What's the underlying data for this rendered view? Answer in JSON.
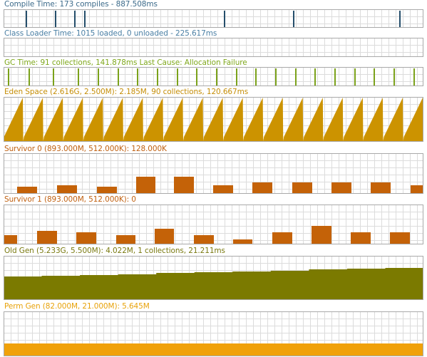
{
  "panels": [
    {
      "id": "compile-time",
      "title": "Compile Time: 173 compiles - 887.508ms",
      "title_color": "#3b6a8a",
      "type": "spikes",
      "fill": "#254e6b",
      "spike_x": [
        0.052,
        0.123,
        0.168,
        0.192,
        0.524,
        0.689,
        0.942
      ]
    },
    {
      "id": "class-loader-time",
      "title": "Class Loader Time: 1015 loaded, 0 unloaded - 225.617ms",
      "title_color": "#4a7fa4",
      "type": "empty"
    },
    {
      "id": "gc-time",
      "title": "GC Time: 91 collections, 141.878ms Last Cause: Allocation Failure",
      "title_color": "#7fa81c",
      "type": "spikes",
      "fill": "#7ba21a",
      "spike_x": [
        0.01,
        0.059,
        0.117,
        0.176,
        0.224,
        0.271,
        0.318,
        0.365,
        0.412,
        0.459,
        0.506,
        0.553,
        0.6,
        0.647,
        0.694,
        0.741,
        0.788,
        0.835,
        0.882,
        0.929,
        0.976
      ]
    },
    {
      "id": "eden-space",
      "title": "Eden Space (2.616G, 2.500M): 2.185M, 90 collections, 120.667ms",
      "title_color": "#c58e07",
      "type": "sawtooth",
      "fill": "#cc9300",
      "teeth": 21
    },
    {
      "id": "survivor-0",
      "title": "Survivor 0 (893.000M, 512.000K): 128.000K",
      "title_color": "#c06010",
      "type": "blocks",
      "fill": "#c46208",
      "blocks": [
        {
          "x": 0.033,
          "w": 0.048,
          "h": 0.16
        },
        {
          "x": 0.127,
          "w": 0.048,
          "h": 0.2
        },
        {
          "x": 0.222,
          "w": 0.048,
          "h": 0.16
        },
        {
          "x": 0.316,
          "w": 0.046,
          "h": 0.4
        },
        {
          "x": 0.405,
          "w": 0.048,
          "h": 0.4
        },
        {
          "x": 0.499,
          "w": 0.048,
          "h": 0.2
        },
        {
          "x": 0.593,
          "w": 0.048,
          "h": 0.27
        },
        {
          "x": 0.687,
          "w": 0.048,
          "h": 0.27
        },
        {
          "x": 0.781,
          "w": 0.048,
          "h": 0.27
        },
        {
          "x": 0.875,
          "w": 0.048,
          "h": 0.27
        },
        {
          "x": 0.969,
          "w": 0.031,
          "h": 0.2
        }
      ]
    },
    {
      "id": "survivor-1",
      "title": "Survivor 1 (893.000M, 512.000K): 0",
      "title_color": "#c06010",
      "type": "blocks",
      "fill": "#c46208",
      "blocks": [
        {
          "x": 0.0,
          "w": 0.032,
          "h": 0.22
        },
        {
          "x": 0.08,
          "w": 0.048,
          "h": 0.33
        },
        {
          "x": 0.173,
          "w": 0.048,
          "h": 0.28
        },
        {
          "x": 0.268,
          "w": 0.046,
          "h": 0.22
        },
        {
          "x": 0.36,
          "w": 0.046,
          "h": 0.38
        },
        {
          "x": 0.453,
          "w": 0.048,
          "h": 0.22
        },
        {
          "x": 0.547,
          "w": 0.046,
          "h": 0.11
        },
        {
          "x": 0.64,
          "w": 0.048,
          "h": 0.28
        },
        {
          "x": 0.733,
          "w": 0.048,
          "h": 0.44
        },
        {
          "x": 0.827,
          "w": 0.048,
          "h": 0.28
        },
        {
          "x": 0.92,
          "w": 0.048,
          "h": 0.28
        }
      ]
    },
    {
      "id": "old-gen",
      "title": "Old Gen (5.233G, 5.500M): 4.022M, 1 collections, 21.211ms",
      "title_color": "#7a7a10",
      "type": "steps",
      "fill": "#7b7a00",
      "levels": [
        0.51,
        0.53,
        0.55,
        0.57,
        0.59,
        0.61,
        0.63,
        0.65,
        0.67,
        0.69,
        0.71
      ]
    },
    {
      "id": "perm-gen",
      "title": "Perm Gen (82.000M, 21.000M): 5.645M",
      "title_color": "#e8a20a",
      "type": "band",
      "fill": "#f0a10a",
      "level": 0.27
    }
  ]
}
